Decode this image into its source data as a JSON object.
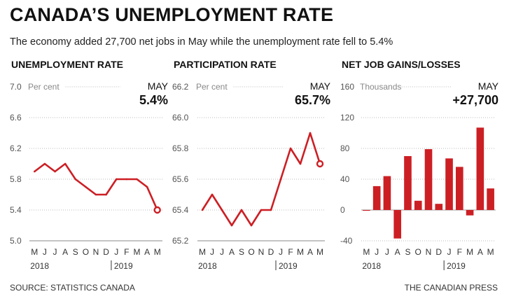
{
  "header": {
    "title": "CANADA’S UNEMPLOYMENT RATE",
    "subtitle": "The economy added 27,700 net jobs in May while the unemployment rate fell to 5.4%"
  },
  "footer": {
    "source": "SOURCE: STATISTICS CANADA",
    "credit": "THE CANADIAN PRESS"
  },
  "colors": {
    "accent": "#cc1f24",
    "grid": "#bbbbbb",
    "axis": "#888888"
  },
  "chart_data": [
    {
      "id": "unemployment",
      "type": "line",
      "title": "UNEMPLOYMENT RATE",
      "unit": "Per cent",
      "latest_label": "MAY",
      "latest_value": "5.4%",
      "categories": [
        "M",
        "J",
        "J",
        "A",
        "S",
        "O",
        "N",
        "D",
        "J",
        "F",
        "M",
        "A",
        "M"
      ],
      "values": [
        5.9,
        6.0,
        5.9,
        6.0,
        5.8,
        5.7,
        5.6,
        5.6,
        5.8,
        5.8,
        5.8,
        5.7,
        5.4
      ],
      "ylim": [
        5.0,
        7.0
      ],
      "yticks": [
        5.0,
        5.4,
        5.8,
        6.2,
        6.6,
        7.0
      ],
      "ytick_labels": [
        "5.0",
        "5.4",
        "5.8",
        "6.2",
        "6.6",
        "7.0"
      ],
      "years": [
        "2018",
        "2019"
      ]
    },
    {
      "id": "participation",
      "type": "line",
      "title": "PARTICIPATION RATE",
      "unit": "Per cent",
      "latest_label": "MAY",
      "latest_value": "65.7%",
      "categories": [
        "M",
        "J",
        "J",
        "A",
        "S",
        "O",
        "N",
        "D",
        "J",
        "F",
        "M",
        "A",
        "M"
      ],
      "values": [
        65.4,
        65.5,
        65.4,
        65.3,
        65.4,
        65.3,
        65.4,
        65.4,
        65.6,
        65.8,
        65.7,
        65.9,
        65.7
      ],
      "ylim": [
        65.2,
        66.2
      ],
      "yticks": [
        65.2,
        65.4,
        65.6,
        65.8,
        66.0,
        66.2
      ],
      "ytick_labels": [
        "65.2",
        "65.4",
        "65.6",
        "65.8",
        "66.0",
        "66.2"
      ],
      "years": [
        "2018",
        "2019"
      ]
    },
    {
      "id": "netjobs",
      "type": "bar",
      "title": "NET JOB GAINS/LOSSES",
      "unit": "Thousands",
      "latest_label": "MAY",
      "latest_value": "+27,700",
      "categories": [
        "M",
        "J",
        "J",
        "A",
        "S",
        "O",
        "N",
        "D",
        "J",
        "F",
        "M",
        "A",
        "M"
      ],
      "values": [
        -1,
        31,
        44,
        -37,
        70,
        12,
        79,
        8,
        67,
        56,
        -7,
        107,
        28
      ],
      "ylim": [
        -40,
        160
      ],
      "yticks": [
        -40,
        0,
        40,
        80,
        120,
        160
      ],
      "ytick_labels": [
        "-40",
        "0",
        "40",
        "80",
        "120",
        "160"
      ],
      "years": [
        "2018",
        "2019"
      ]
    }
  ]
}
